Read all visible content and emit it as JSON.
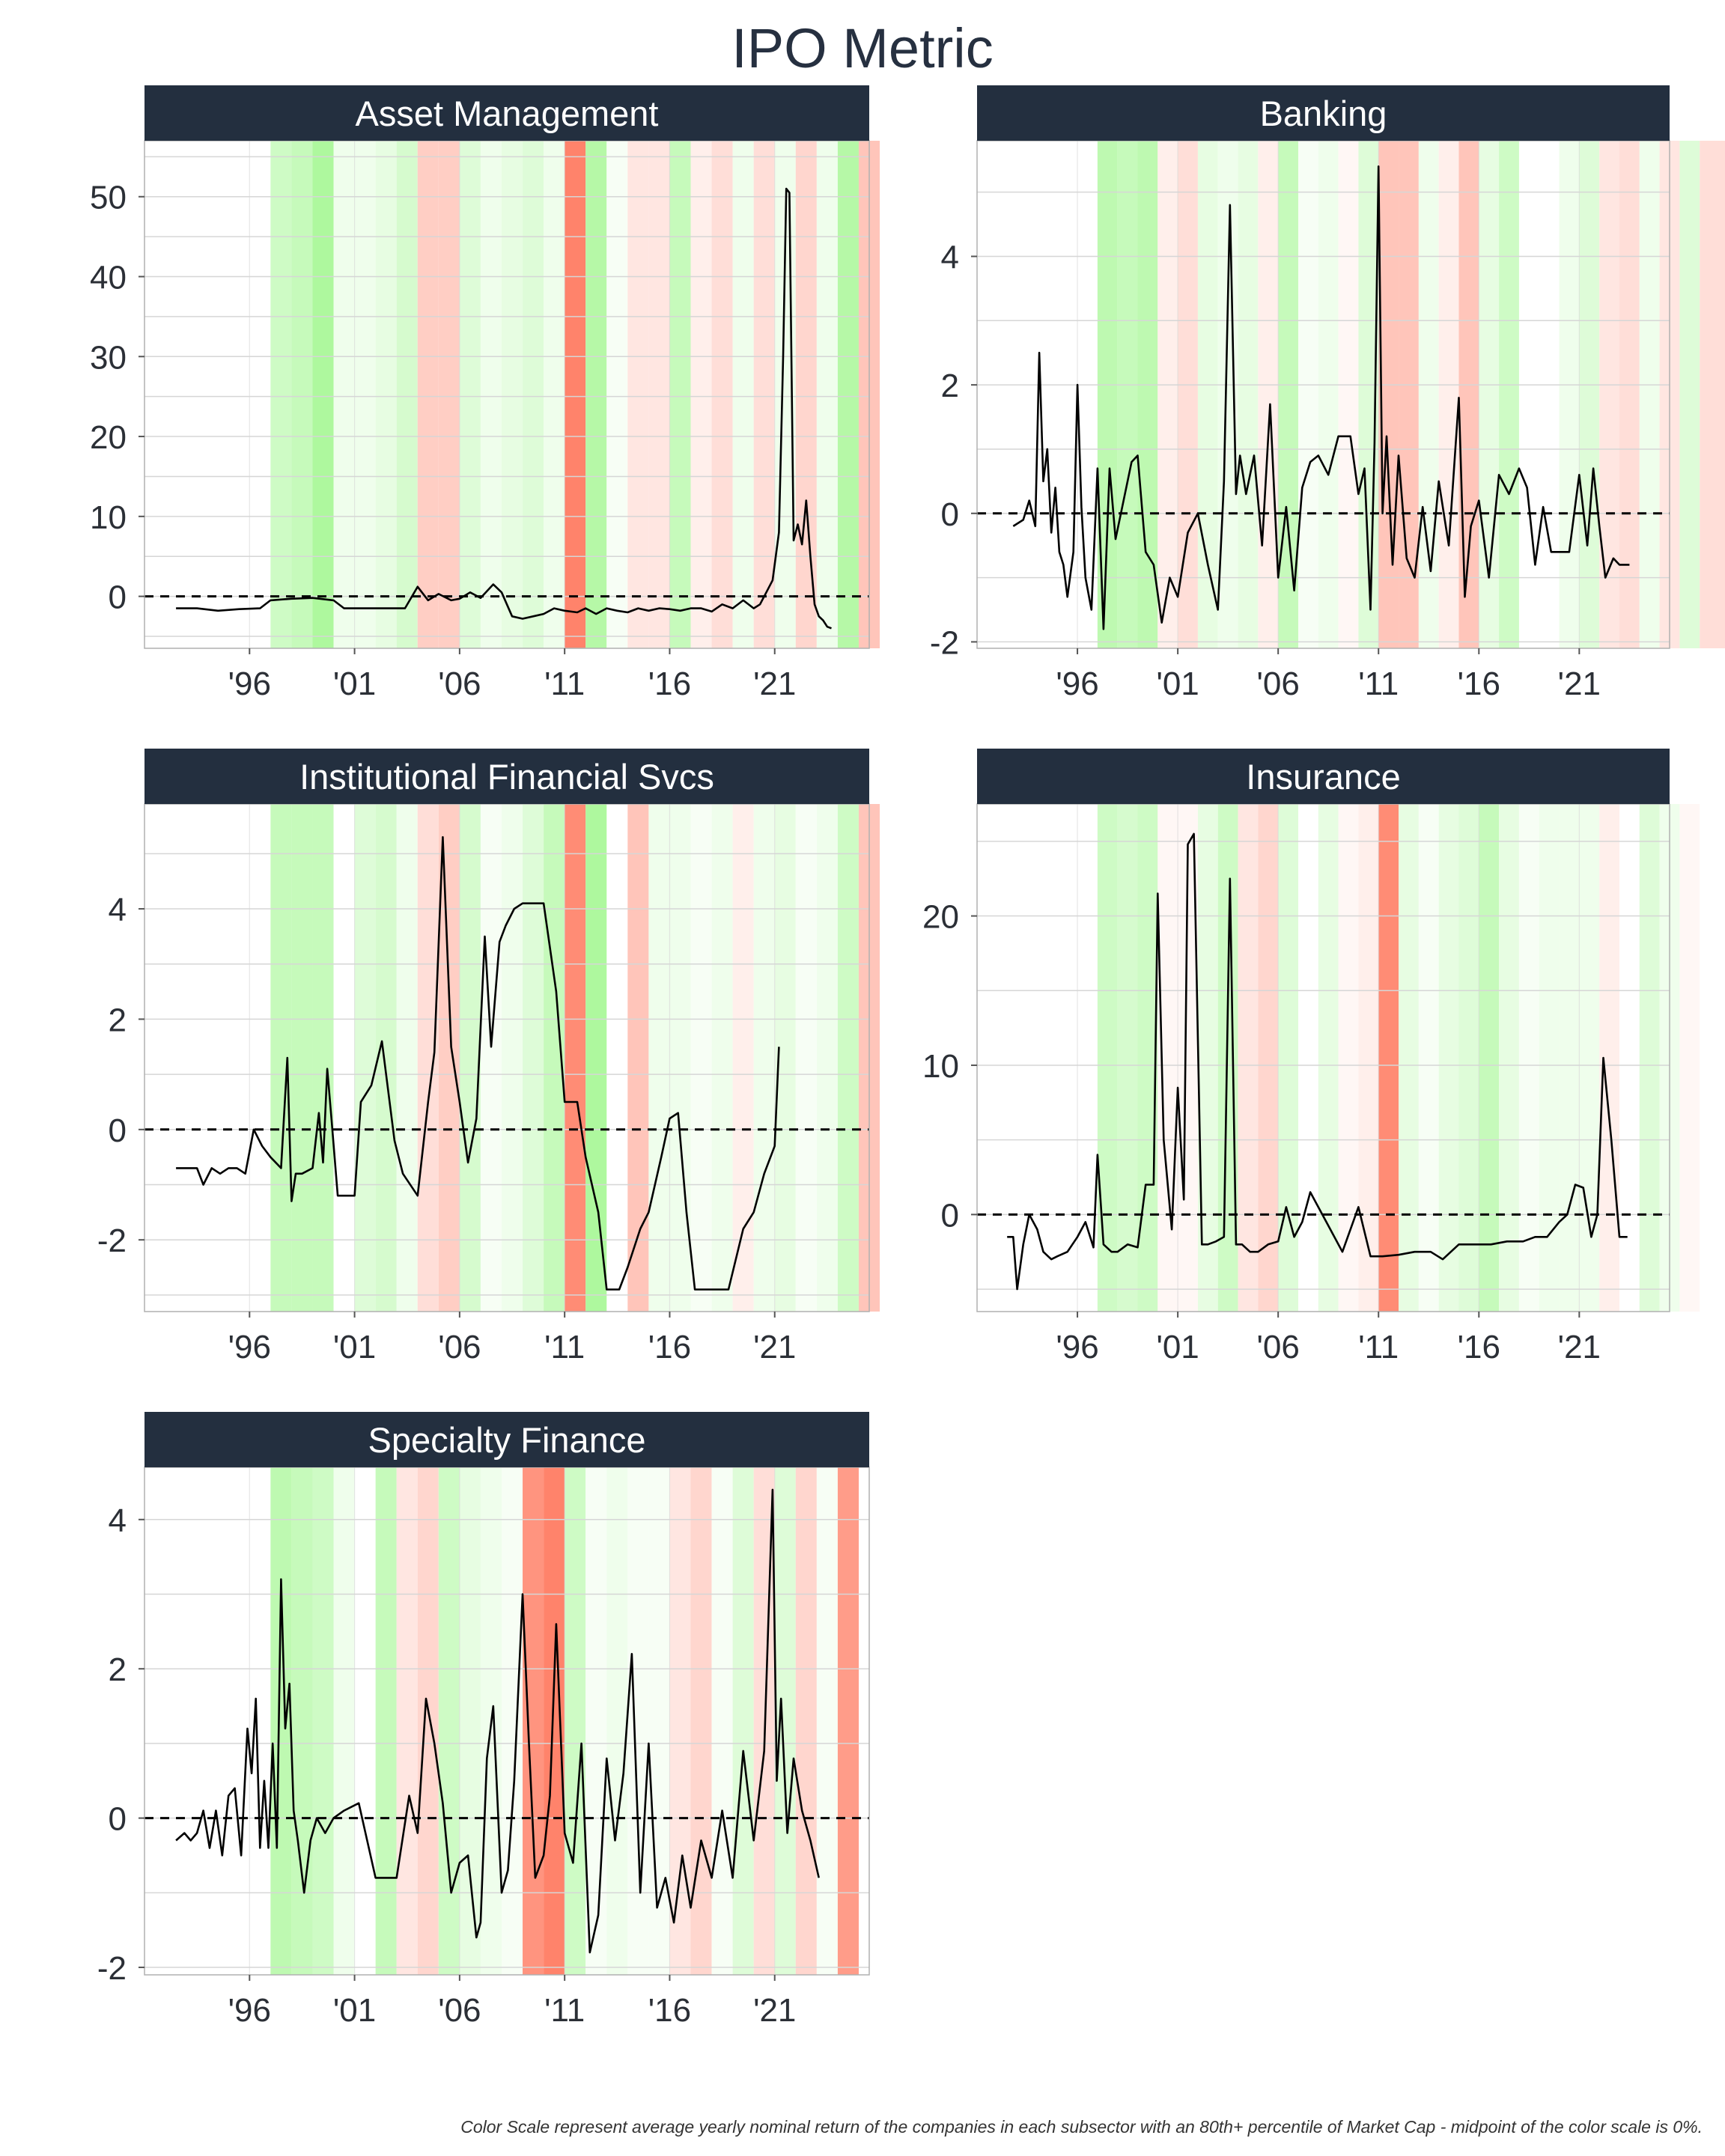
{
  "title": "IPO Metric",
  "footnote": "Color Scale represent average yearly nominal return of the companies in each subsector with an 80th+ percentile of Market Cap - midpoint of the color scale is 0%.",
  "colors": {
    "strip": "#232f3f",
    "line": "#000000",
    "positive": "#5cf03c",
    "negative": "#ff5a3a",
    "grid": "#d6d6d6"
  },
  "x_axis": {
    "range": [
      1991,
      2025.5
    ],
    "ticks": [
      1996,
      2001,
      2006,
      2011,
      2016,
      2021
    ],
    "tick_labels": [
      "'96",
      "'01",
      "'06",
      "'11",
      "'16",
      "'21"
    ]
  },
  "chart_data": [
    {
      "type": "line",
      "title": "Asset Management",
      "ylim": [
        -6.5,
        57
      ],
      "yticks": [
        0,
        10,
        20,
        30,
        40,
        50
      ],
      "ytick_labels": [
        "0",
        "10",
        "20",
        "30",
        "40",
        "50"
      ],
      "reference_line": 0,
      "heat_years": [
        1994,
        2024
      ],
      "heat": [
        0,
        0,
        0,
        0.3,
        0.35,
        0.5,
        0.1,
        0.1,
        0.15,
        0.25,
        -0.3,
        -0.3,
        0.2,
        0.1,
        0.15,
        0.2,
        0.1,
        -0.75,
        0.45,
        0.05,
        -0.15,
        -0.15,
        0.35,
        -0.1,
        -0.2,
        0.1,
        -0.2,
        0.1,
        -0.25,
        0.1,
        0.45,
        -0.35,
        0
      ],
      "x": [
        1992.5,
        1993.5,
        1994.5,
        1995.5,
        1996.5,
        1997.0,
        1998.0,
        1999.0,
        2000.0,
        2000.5,
        2002.5,
        2003.4,
        2004.0,
        2004.5,
        2005.0,
        2005.6,
        2006.0,
        2006.5,
        2007.0,
        2007.6,
        2008.0,
        2008.5,
        2009.0,
        2009.5,
        2010.0,
        2010.5,
        2011.0,
        2011.6,
        2012.0,
        2012.5,
        2013.0,
        2013.5,
        2014.0,
        2014.5,
        2015.0,
        2015.5,
        2016.0,
        2016.5,
        2017.0,
        2017.5,
        2018.0,
        2018.5,
        2019.0,
        2019.5,
        2020.0,
        2020.3,
        2020.6,
        2020.9,
        2021.2,
        2021.4,
        2021.55,
        2021.7,
        2021.9,
        2022.1,
        2022.3,
        2022.5,
        2022.7,
        2022.9,
        2023.1,
        2023.3,
        2023.5,
        2023.7
      ],
      "y": [
        -1.5,
        -1.5,
        -1.8,
        -1.6,
        -1.5,
        -0.5,
        -0.3,
        -0.2,
        -0.5,
        -1.5,
        -1.5,
        -1.5,
        1.2,
        -0.5,
        0.3,
        -0.5,
        -0.3,
        0.5,
        -0.2,
        1.5,
        0.5,
        -2.5,
        -2.8,
        -2.5,
        -2.2,
        -1.5,
        -1.8,
        -2.0,
        -1.5,
        -2.2,
        -1.5,
        -1.8,
        -2.0,
        -1.5,
        -1.8,
        -1.5,
        -1.6,
        -1.8,
        -1.5,
        -1.5,
        -1.9,
        -1.0,
        -1.5,
        -0.5,
        -1.5,
        -1.0,
        0.5,
        2.0,
        8.0,
        30.0,
        51.0,
        50.5,
        7.0,
        9.0,
        6.5,
        12.0,
        5.0,
        -1.0,
        -2.5,
        -3.0,
        -3.8,
        -4.0
      ],
      "panel": {
        "col": 0,
        "row": 0
      }
    },
    {
      "type": "line",
      "title": "Banking",
      "ylim": [
        -2.1,
        5.8
      ],
      "yticks": [
        -2,
        0,
        2,
        4
      ],
      "ytick_labels": [
        "-2",
        "0",
        "2",
        "4"
      ],
      "reference_line": 0,
      "heat_years": [
        1994,
        2024
      ],
      "heat": [
        0,
        0,
        0,
        0.4,
        0.35,
        0.4,
        -0.1,
        -0.2,
        0.15,
        0.1,
        0.15,
        -0.1,
        0.35,
        0.05,
        0.1,
        -0.05,
        0.2,
        -0.35,
        -0.35,
        0.1,
        -0.1,
        -0.35,
        0.15,
        0.3,
        0,
        0,
        0.1,
        0.2,
        -0.15,
        -0.2,
        0.1,
        -0.15,
        0.2,
        -0.2,
        -0.2
      ],
      "x": [
        1992.8,
        1993.3,
        1993.6,
        1993.9,
        1994.1,
        1994.3,
        1994.5,
        1994.7,
        1994.9,
        1995.1,
        1995.3,
        1995.5,
        1995.8,
        1996.0,
        1996.2,
        1996.4,
        1996.7,
        1997.0,
        1997.3,
        1997.6,
        1997.9,
        1998.3,
        1998.7,
        1999.0,
        1999.4,
        1999.8,
        2000.2,
        2000.6,
        2001.0,
        2001.5,
        2002.0,
        2002.5,
        2003.0,
        2003.3,
        2003.6,
        2003.9,
        2004.1,
        2004.4,
        2004.8,
        2005.2,
        2005.6,
        2006.0,
        2006.4,
        2006.8,
        2007.2,
        2007.6,
        2008.0,
        2008.5,
        2009.0,
        2009.6,
        2010.0,
        2010.3,
        2010.6,
        2010.8,
        2011.0,
        2011.2,
        2011.4,
        2011.7,
        2012.0,
        2012.4,
        2012.8,
        2013.2,
        2013.6,
        2014.0,
        2014.5,
        2015.0,
        2015.3,
        2015.6,
        2016.0,
        2016.5,
        2017.0,
        2017.5,
        2018.0,
        2018.4,
        2018.8,
        2019.2,
        2019.6,
        2020.0,
        2020.5,
        2021.0,
        2021.4,
        2021.7,
        2022.0,
        2022.3,
        2022.7,
        2023.0,
        2023.5
      ],
      "y": [
        -0.2,
        -0.1,
        0.2,
        -0.2,
        2.5,
        0.5,
        1.0,
        -0.3,
        0.4,
        -0.6,
        -0.8,
        -1.3,
        -0.6,
        2.0,
        0.1,
        -1.0,
        -1.5,
        0.7,
        -1.8,
        0.7,
        -0.4,
        0.2,
        0.8,
        0.9,
        -0.6,
        -0.8,
        -1.7,
        -1.0,
        -1.3,
        -0.3,
        0,
        -0.8,
        -1.5,
        0.5,
        4.8,
        0.3,
        0.9,
        0.3,
        0.9,
        -0.5,
        1.7,
        -1.0,
        0.1,
        -1.2,
        0.4,
        0.8,
        0.9,
        0.6,
        1.2,
        1.2,
        0.3,
        0.7,
        -1.5,
        1.1,
        5.4,
        0.0,
        1.2,
        -0.8,
        0.9,
        -0.7,
        -1.0,
        0.1,
        -0.9,
        0.5,
        -0.5,
        1.8,
        -1.3,
        -0.2,
        0.2,
        -1.0,
        0.6,
        0.3,
        0.7,
        0.4,
        -0.8,
        0.1,
        -0.6,
        -0.6,
        -0.6,
        0.6,
        -0.5,
        0.7,
        -0.2,
        -1.0,
        -0.7,
        -0.8,
        -0.8
      ],
      "panel": {
        "col": 1,
        "row": 0
      }
    },
    {
      "type": "line",
      "title": "Institutional Financial Svcs",
      "ylim": [
        -3.3,
        5.9
      ],
      "yticks": [
        -2,
        0,
        2,
        4
      ],
      "ytick_labels": [
        "-2",
        "0",
        "2",
        "4"
      ],
      "reference_line": 0,
      "heat_years": [
        1994,
        2024
      ],
      "heat": [
        0,
        0,
        0,
        0.35,
        0.35,
        0.35,
        0,
        0.2,
        0.25,
        0.1,
        -0.2,
        -0.3,
        0.25,
        0.05,
        0.1,
        0.2,
        0.35,
        -0.7,
        0.5,
        0,
        -0.35,
        0.1,
        0.1,
        0.05,
        0.1,
        -0.1,
        0.1,
        0.15,
        0.05,
        0.1,
        0.3,
        -0.35,
        0
      ],
      "x": [
        1992.5,
        1993.5,
        1993.8,
        1994.2,
        1994.6,
        1995.0,
        1995.4,
        1995.8,
        1996.2,
        1996.6,
        1997.0,
        1997.5,
        1997.8,
        1998.0,
        1998.2,
        1998.5,
        1999.0,
        1999.3,
        1999.5,
        1999.7,
        1999.9,
        2000.2,
        2001.0,
        2001.3,
        2001.8,
        2002.3,
        2002.9,
        2003.3,
        2004.0,
        2004.5,
        2004.8,
        2005.2,
        2005.6,
        2006.0,
        2006.4,
        2006.8,
        2007.2,
        2007.5,
        2007.9,
        2008.2,
        2008.6,
        2009.0,
        2010.0,
        2010.6,
        2011.0,
        2011.6,
        2012.0,
        2012.6,
        2013.0,
        2013.6,
        2014.0,
        2014.6,
        2015.0,
        2015.6,
        2016.0,
        2016.4,
        2016.8,
        2017.2,
        2017.7,
        2018.2,
        2018.8,
        2019.5,
        2020.0,
        2020.5,
        2021.0,
        2021.2
      ],
      "y": [
        -0.7,
        -0.7,
        -1.0,
        -0.7,
        -0.8,
        -0.7,
        -0.7,
        -0.8,
        0.0,
        -0.3,
        -0.5,
        -0.7,
        1.3,
        -1.3,
        -0.8,
        -0.8,
        -0.7,
        0.3,
        -0.6,
        1.1,
        0.2,
        -1.2,
        -1.2,
        0.5,
        0.8,
        1.6,
        -0.2,
        -0.8,
        -1.2,
        0.5,
        1.4,
        5.3,
        1.5,
        0.5,
        -0.6,
        0.2,
        3.5,
        1.5,
        3.4,
        3.7,
        4.0,
        4.1,
        4.1,
        2.5,
        0.5,
        0.5,
        -0.5,
        -1.5,
        -2.9,
        -2.9,
        -2.5,
        -1.8,
        -1.5,
        -0.5,
        0.2,
        0.3,
        -1.5,
        -2.9,
        -2.9,
        -2.9,
        -2.9,
        -1.8,
        -1.5,
        -0.8,
        -0.3,
        1.5
      ],
      "panel": {
        "col": 0,
        "row": 1
      }
    },
    {
      "type": "line",
      "title": "Insurance",
      "ylim": [
        -6.5,
        27.5
      ],
      "yticks": [
        0,
        10,
        20
      ],
      "ytick_labels": [
        "0",
        "10",
        "20"
      ],
      "reference_line": 0,
      "heat_years": [
        1994,
        2024
      ],
      "heat": [
        0,
        0,
        0,
        0.3,
        0.25,
        0.3,
        -0.05,
        -0.05,
        0.15,
        0.3,
        -0.15,
        -0.25,
        0.2,
        0,
        0.15,
        -0.05,
        -0.1,
        -0.7,
        0.15,
        0.05,
        0.15,
        0.2,
        0.35,
        0.15,
        0.05,
        0.1,
        0.1,
        0.1,
        -0.1,
        0,
        0.2,
        0.1,
        -0.05
      ],
      "x": [
        1992.5,
        1992.8,
        1993.0,
        1993.3,
        1993.6,
        1994.0,
        1994.3,
        1994.7,
        1995.0,
        1995.5,
        1996.0,
        1996.4,
        1996.8,
        1997.0,
        1997.3,
        1997.7,
        1998.0,
        1998.5,
        1999.0,
        1999.4,
        1999.8,
        2000.0,
        2000.3,
        2000.7,
        2001.0,
        2001.3,
        2001.5,
        2001.8,
        2002.2,
        2002.5,
        2002.9,
        2003.3,
        2003.6,
        2003.9,
        2004.2,
        2004.6,
        2005.0,
        2005.5,
        2006.0,
        2006.4,
        2006.8,
        2007.2,
        2007.6,
        2008.0,
        2008.6,
        2009.2,
        2010.0,
        2010.6,
        2011.2,
        2012.0,
        2012.8,
        2013.6,
        2014.2,
        2015.0,
        2015.8,
        2016.6,
        2017.4,
        2018.2,
        2018.8,
        2019.4,
        2020.0,
        2020.4,
        2020.8,
        2021.2,
        2021.6,
        2021.9,
        2022.2,
        2022.6,
        2023.0,
        2023.4
      ],
      "y": [
        -1.5,
        -1.5,
        -5.0,
        -2.0,
        0,
        -1.0,
        -2.5,
        -3.0,
        -2.8,
        -2.5,
        -1.5,
        -0.5,
        -2.2,
        4.0,
        -2.0,
        -2.5,
        -2.5,
        -2.0,
        -2.2,
        2.0,
        2.0,
        21.5,
        5.0,
        -1.0,
        8.5,
        1.0,
        24.8,
        25.5,
        -2.0,
        -2.0,
        -1.8,
        -1.5,
        22.5,
        -2.0,
        -2.0,
        -2.5,
        -2.5,
        -2.0,
        -1.8,
        0.5,
        -1.5,
        -0.5,
        1.5,
        0.5,
        -1.0,
        -2.5,
        0.5,
        -2.8,
        -2.8,
        -2.7,
        -2.5,
        -2.5,
        -3.0,
        -2.0,
        -2.0,
        -2.0,
        -1.8,
        -1.8,
        -1.5,
        -1.5,
        -0.5,
        0,
        2.0,
        1.8,
        -1.5,
        0,
        10.5,
        5.0,
        -1.5,
        -1.5
      ],
      "panel": {
        "col": 1,
        "row": 1
      }
    },
    {
      "type": "line",
      "title": "Specialty Finance",
      "ylim": [
        -2.1,
        4.7
      ],
      "yticks": [
        -2,
        0,
        2,
        4
      ],
      "ytick_labels": [
        "-2",
        "0",
        "2",
        "4"
      ],
      "reference_line": 0,
      "heat_years": [
        1994,
        2024
      ],
      "heat": [
        0,
        0,
        0,
        0.4,
        0.35,
        0.3,
        0.1,
        0,
        0.35,
        -0.15,
        -0.25,
        0.3,
        0.15,
        0.1,
        0.05,
        -0.65,
        -0.75,
        0.3,
        0.05,
        0.1,
        0.05,
        0.05,
        -0.15,
        -0.25,
        0.05,
        0.2,
        -0.2,
        0.2,
        -0.25,
        0.05,
        -0.6,
        0
      ],
      "x": [
        1992.5,
        1992.9,
        1993.2,
        1993.5,
        1993.8,
        1994.1,
        1994.4,
        1994.7,
        1995.0,
        1995.3,
        1995.6,
        1995.9,
        1996.1,
        1996.3,
        1996.5,
        1996.7,
        1996.9,
        1997.1,
        1997.3,
        1997.5,
        1997.7,
        1997.9,
        1998.1,
        1998.3,
        1998.6,
        1998.9,
        1999.2,
        1999.6,
        2000.0,
        2000.5,
        2001.2,
        2002.0,
        2002.5,
        2003.0,
        2003.6,
        2004.0,
        2004.4,
        2004.8,
        2005.2,
        2005.6,
        2006.0,
        2006.4,
        2006.8,
        2007.0,
        2007.3,
        2007.6,
        2008.0,
        2008.3,
        2008.6,
        2009.0,
        2009.3,
        2009.6,
        2010.0,
        2010.3,
        2010.6,
        2011.0,
        2011.4,
        2011.8,
        2012.2,
        2012.6,
        2013.0,
        2013.4,
        2013.8,
        2014.2,
        2014.6,
        2015.0,
        2015.4,
        2015.8,
        2016.2,
        2016.6,
        2017.0,
        2017.5,
        2018.0,
        2018.5,
        2019.0,
        2019.5,
        2020.0,
        2020.5,
        2020.9,
        2021.1,
        2021.3,
        2021.6,
        2021.9,
        2022.3,
        2022.7,
        2023.1
      ],
      "y": [
        -0.3,
        -0.2,
        -0.3,
        -0.2,
        0.1,
        -0.4,
        0.1,
        -0.5,
        0.3,
        0.4,
        -0.5,
        1.2,
        0.6,
        1.6,
        -0.4,
        0.5,
        -0.4,
        1.0,
        -0.4,
        3.2,
        1.2,
        1.8,
        0.1,
        -0.3,
        -1.0,
        -0.3,
        0,
        -0.2,
        0,
        0.1,
        0.2,
        -0.8,
        -0.8,
        -0.8,
        0.3,
        -0.2,
        1.6,
        1.0,
        0.2,
        -1.0,
        -0.6,
        -0.5,
        -1.6,
        -1.4,
        0.8,
        1.5,
        -1.0,
        -0.7,
        0.5,
        3.0,
        1.0,
        -0.8,
        -0.5,
        0.3,
        2.6,
        -0.2,
        -0.6,
        1.0,
        -1.8,
        -1.3,
        0.8,
        -0.3,
        0.6,
        2.2,
        -1.0,
        1.0,
        -1.2,
        -0.8,
        -1.4,
        -0.5,
        -1.2,
        -0.3,
        -0.8,
        0.1,
        -0.8,
        0.9,
        -0.3,
        0.9,
        4.4,
        0.5,
        1.6,
        -0.2,
        0.8,
        0.1,
        -0.3,
        -0.8
      ],
      "panel": {
        "col": 0,
        "row": 2
      }
    }
  ]
}
